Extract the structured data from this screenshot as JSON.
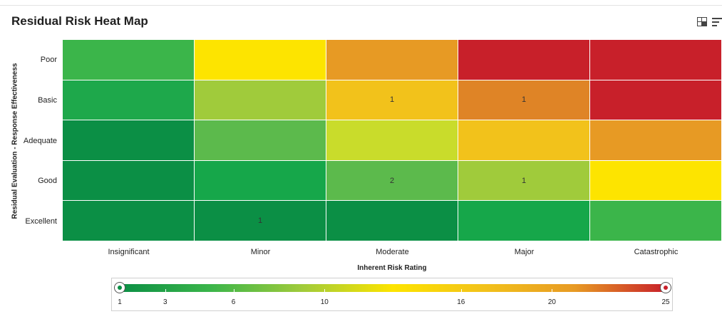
{
  "header": {
    "title": "Residual Risk Heat Map",
    "grid_view_icon": "grid-view-icon",
    "menu_icon": "menu-icon"
  },
  "chart_data": {
    "type": "heatmap",
    "ylabel": "Residual Evaluation - Response Effectiveness",
    "xlabel": "Inherent Risk Rating",
    "rows": [
      "Poor",
      "Basic",
      "Adequate",
      "Good",
      "Excellent"
    ],
    "columns": [
      "Insignificant",
      "Minor",
      "Moderate",
      "Major",
      "Catastrophic"
    ],
    "cell_colors": [
      [
        "#3bb54a",
        "#fde400",
        "#e79a24",
        "#c8202a",
        "#c8202a"
      ],
      [
        "#1ea84b",
        "#a0cb3b",
        "#f2c21b",
        "#df8426",
        "#c8202a"
      ],
      [
        "#0b8f45",
        "#5cba4c",
        "#c9dc2b",
        "#f2c21b",
        "#e79a24"
      ],
      [
        "#0b8f45",
        "#16a74a",
        "#5cba4c",
        "#a0cb3b",
        "#fde400"
      ],
      [
        "#0b8f45",
        "#0b8f45",
        "#0b8f45",
        "#16a74a",
        "#3bb54a"
      ]
    ],
    "counts": [
      [
        "",
        "",
        "",
        "",
        ""
      ],
      [
        "",
        "",
        "1",
        "1",
        ""
      ],
      [
        "",
        "",
        "",
        "",
        ""
      ],
      [
        "",
        "",
        "2",
        "1",
        ""
      ],
      [
        "",
        "1",
        "",
        "",
        ""
      ]
    ],
    "legend": {
      "min": 1,
      "max": 25,
      "ticks": [
        1,
        3,
        6,
        10,
        16,
        20,
        25
      ],
      "gradient_stops": [
        "#0b8f45",
        "#3bb54a",
        "#a0cb3b",
        "#fde400",
        "#f2c21b",
        "#e79a24",
        "#c8202a"
      ],
      "handle_low_color": "#0b8f45",
      "handle_high_color": "#c8202a"
    }
  }
}
